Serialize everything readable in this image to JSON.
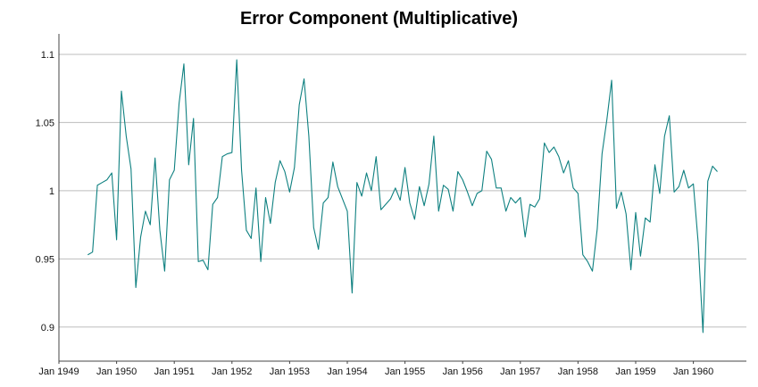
{
  "chart_data": {
    "type": "line",
    "title": "Error Component (Multiplicative)",
    "xlabel": "",
    "ylabel": "",
    "ylim": [
      0.875,
      1.115
    ],
    "xlim": [
      "1949-01",
      "1960-12"
    ],
    "grid": {
      "horizontal": true,
      "vertical": false
    },
    "colors": {
      "line": "#0e8080",
      "grid": "#bdbdbd",
      "axis": "#444444"
    },
    "x_ticks": [
      "Jan 1949",
      "Jan 1950",
      "Jan 1951",
      "Jan 1952",
      "Jan 1953",
      "Jan 1954",
      "Jan 1955",
      "Jan 1956",
      "Jan 1957",
      "Jan 1958",
      "Jan 1959",
      "Jan 1960"
    ],
    "y_ticks": [
      "0.9",
      "0.95",
      "1",
      "1.05",
      "1.1"
    ],
    "y_tick_values": [
      0.9,
      0.95,
      1.0,
      1.05,
      1.1
    ],
    "series": [
      {
        "x_start": "1949-07",
        "frequency": "monthly",
        "values": [
          0.953,
          0.955,
          1.004,
          1.006,
          1.008,
          1.013,
          0.964,
          1.073,
          1.04,
          1.016,
          0.929,
          0.966,
          0.985,
          0.975,
          1.024,
          0.971,
          0.941,
          1.008,
          1.015,
          1.064,
          1.093,
          1.019,
          1.053,
          0.948,
          0.949,
          0.942,
          0.99,
          0.995,
          1.025,
          1.027,
          1.028,
          1.096,
          1.015,
          0.971,
          0.965,
          1.002,
          0.948,
          0.995,
          0.976,
          1.006,
          1.022,
          1.014,
          0.999,
          1.017,
          1.063,
          1.082,
          1.04,
          0.973,
          0.957,
          0.991,
          0.995,
          1.021,
          1.003,
          0.994,
          0.985,
          0.925,
          1.006,
          0.996,
          1.013,
          1.0,
          1.025,
          0.986,
          0.99,
          0.994,
          1.002,
          0.993,
          1.017,
          0.991,
          0.979,
          1.003,
          0.989,
          1.005,
          1.04,
          0.985,
          1.004,
          1.001,
          0.985,
          1.014,
          1.008,
          0.999,
          0.989,
          0.998,
          1.0,
          1.029,
          1.023,
          1.002,
          1.002,
          0.985,
          0.995,
          0.991,
          0.995,
          0.966,
          0.99,
          0.988,
          0.994,
          1.035,
          1.028,
          1.032,
          1.025,
          1.013,
          1.022,
          1.002,
          0.998,
          0.953,
          0.948,
          0.941,
          0.972,
          1.027,
          1.052,
          1.081,
          0.987,
          0.999,
          0.983,
          0.942,
          0.984,
          0.952,
          0.98,
          0.977,
          1.019,
          0.998,
          1.04,
          1.055,
          0.999,
          1.003,
          1.015,
          1.002,
          1.005,
          0.962,
          0.896,
          1.007,
          1.018,
          1.014
        ]
      }
    ]
  }
}
